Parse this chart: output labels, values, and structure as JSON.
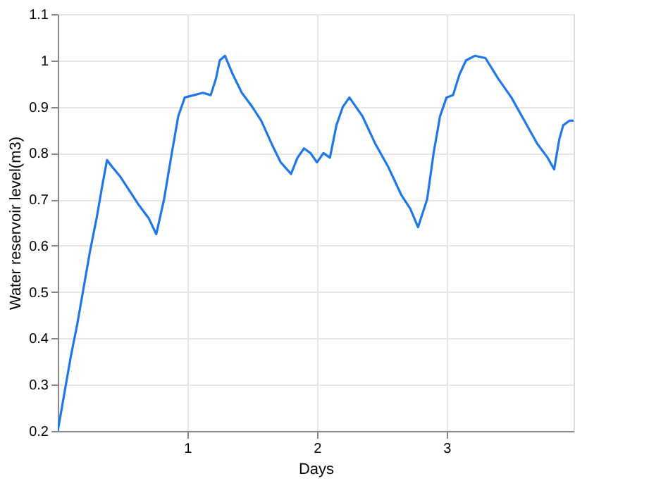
{
  "chart_data": {
    "type": "line",
    "xlabel": "Days",
    "ylabel": "Water reservoir level(m3)",
    "xlim": [
      0,
      3.98
    ],
    "xticks": [
      1,
      2,
      3
    ],
    "ylim": [
      0.2,
      1.1
    ],
    "yticks": [
      0.2,
      0.3,
      0.4,
      0.5,
      0.6,
      0.7,
      0.8,
      0.9,
      1,
      1.1
    ],
    "grid": true,
    "line_style": "solid",
    "series": [
      {
        "color": "#1f77e8",
        "x": [
          0,
          0.05,
          0.1,
          0.15,
          0.2,
          0.25,
          0.3,
          0.35,
          0.38,
          0.42,
          0.48,
          0.55,
          0.62,
          0.7,
          0.76,
          0.82,
          0.88,
          0.93,
          0.98,
          1.05,
          1.12,
          1.18,
          1.22,
          1.25,
          1.29,
          1.35,
          1.42,
          1.5,
          1.57,
          1.65,
          1.72,
          1.8,
          1.85,
          1.9,
          1.95,
          2.0,
          2.05,
          2.1,
          2.15,
          2.2,
          2.25,
          2.35,
          2.45,
          2.55,
          2.65,
          2.72,
          2.78,
          2.85,
          2.9,
          2.95,
          3.0,
          3.05,
          3.1,
          3.15,
          3.22,
          3.3,
          3.4,
          3.5,
          3.6,
          3.7,
          3.78,
          3.83,
          3.87,
          3.9,
          3.95,
          3.98
        ],
        "values": [
          0.2,
          0.28,
          0.36,
          0.43,
          0.51,
          0.59,
          0.66,
          0.74,
          0.785,
          0.77,
          0.75,
          0.72,
          0.69,
          0.66,
          0.625,
          0.7,
          0.8,
          0.88,
          0.92,
          0.925,
          0.93,
          0.925,
          0.96,
          1.0,
          1.01,
          0.97,
          0.93,
          0.9,
          0.87,
          0.82,
          0.78,
          0.755,
          0.79,
          0.81,
          0.8,
          0.78,
          0.8,
          0.79,
          0.86,
          0.9,
          0.92,
          0.88,
          0.82,
          0.77,
          0.71,
          0.68,
          0.64,
          0.7,
          0.8,
          0.88,
          0.92,
          0.925,
          0.97,
          1.0,
          1.01,
          1.005,
          0.96,
          0.92,
          0.87,
          0.82,
          0.79,
          0.765,
          0.83,
          0.86,
          0.87,
          0.87
        ]
      }
    ]
  }
}
